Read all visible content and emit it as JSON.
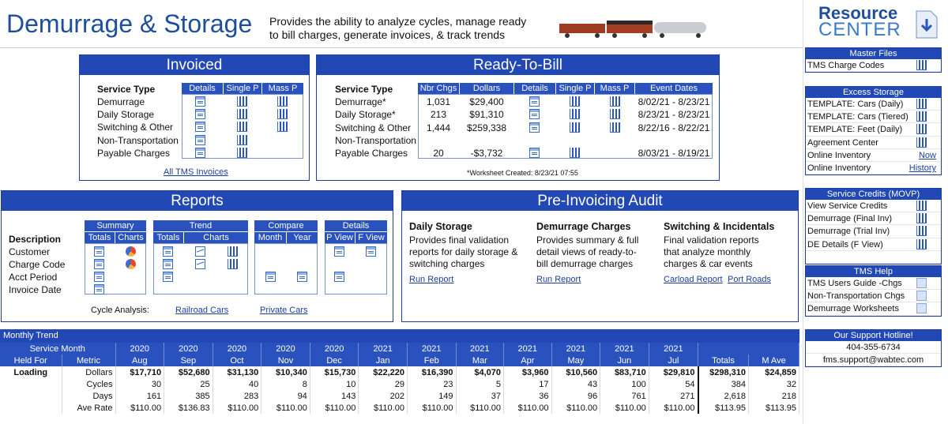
{
  "header": {
    "title": "Demurrage & Storage",
    "desc_line1": "Provides the ability to analyze cycles, manage ready",
    "desc_line2": "to bill charges, generate invoices, & track trends"
  },
  "invoiced": {
    "title": "Invoiced",
    "service_type_label": "Service Type",
    "cols": [
      "Details",
      "Single P",
      "Mass P"
    ],
    "rows": [
      "Demurrage",
      "Daily Storage",
      "Switching & Other",
      "Non-Transportation",
      "Payable Charges"
    ],
    "link": "All TMS Invoices"
  },
  "rtb": {
    "title": "Ready-To-Bill",
    "service_type_label": "Service Type",
    "cols": [
      "Nbr Chgs",
      "Dollars",
      "Details",
      "Single P",
      "Mass P",
      "Event Dates"
    ],
    "rows": [
      {
        "type": "Demurrage*",
        "nbr": "1,031",
        "dollars": "$29,400",
        "dates": "8/02/21 - 8/23/21"
      },
      {
        "type": "Daily Storage*",
        "nbr": "213",
        "dollars": "$91,310",
        "dates": "8/23/21 - 8/23/21"
      },
      {
        "type": "Switching & Other",
        "nbr": "1,444",
        "dollars": "$259,338",
        "dates": "8/22/16 - 8/22/21"
      },
      {
        "type": "Non-Transportation",
        "nbr": "",
        "dollars": "",
        "dates": ""
      },
      {
        "type": "Payable Charges",
        "nbr": "20",
        "dollars": "-$3,732",
        "dates": "8/03/21 - 8/19/21"
      }
    ],
    "footnote": "*Worksheet Created: 8/23/21 07:55"
  },
  "reports": {
    "title": "Reports",
    "description_label": "Description",
    "rows": [
      "Customer",
      "Charge Code",
      "Acct Period",
      "Invoice Date"
    ],
    "groups": [
      {
        "name": "Summary",
        "cols": [
          "Totals",
          "Charts"
        ]
      },
      {
        "name": "Trend",
        "cols": [
          "Totals",
          "Charts"
        ]
      },
      {
        "name": "Compare",
        "cols": [
          "Month",
          "Year"
        ]
      },
      {
        "name": "Details",
        "cols": [
          "P View",
          "F View"
        ]
      }
    ],
    "cycle_label": "Cycle Analysis:",
    "cycle_links": [
      "Railroad Cars",
      "Private Cars"
    ]
  },
  "audit": {
    "title": "Pre-Invoicing Audit",
    "cols": [
      {
        "h": "Daily Storage",
        "l1": "Provides final validation",
        "l2": "reports for daily storage &",
        "l3": "switching charges",
        "links": [
          "Run Report"
        ]
      },
      {
        "h": "Demurrage Charges",
        "l1": "Provides summary & full",
        "l2": "detail views of ready-to-",
        "l3": "bill demurrage charges",
        "links": [
          "Run Report"
        ]
      },
      {
        "h": "Switching & Incidentals",
        "l1": "Final validation reports",
        "l2": "that analyze monthly",
        "l3": "charges & car events",
        "links": [
          "Carload Report",
          "Port Roads"
        ]
      }
    ]
  },
  "resource": {
    "logo1": "Resource",
    "logo2": "CENTER",
    "sections": [
      {
        "title": "Master Files",
        "items": [
          {
            "label": "TMS Charge Codes",
            "icon": "bar-icon"
          }
        ]
      },
      {
        "title": "Excess Storage",
        "items": [
          {
            "label": "TEMPLATE: Cars (Daily)",
            "icon": "bar-icon"
          },
          {
            "label": "TEMPLATE: Cars (Tiered)",
            "icon": "bar-icon"
          },
          {
            "label": "TEMPLATE: Feet (Daily)",
            "icon": "bar-icon"
          },
          {
            "label": "Agreement Center",
            "icon": "bar-icon"
          },
          {
            "label": "Online Inventory",
            "link": "Now"
          },
          {
            "label": "Online Inventory",
            "link": "History"
          }
        ]
      },
      {
        "title": "Service Credits (MOVP)",
        "items": [
          {
            "label": "View Service Credits",
            "icon": "bar-icon"
          },
          {
            "label": "Demurrage (Final Inv)",
            "icon": "bar-icon"
          },
          {
            "label": "Demurrage (Trial Inv)",
            "icon": "bar-icon"
          },
          {
            "label": "DE Details (F View)",
            "icon": "bar-icon"
          },
          {
            "label": "",
            "icon": ""
          }
        ]
      },
      {
        "title": "TMS Help",
        "items": [
          {
            "label": "TMS Users Guide -Chgs",
            "icon": "doc-icon"
          },
          {
            "label": "Non-Transportation Chgs",
            "icon": "doc-icon"
          },
          {
            "label": "Demurrage Worksheets",
            "icon": "doc-icon"
          }
        ]
      },
      {
        "title": "Our Support Hotline!",
        "items": [
          {
            "label": "404-355-6734"
          },
          {
            "label": "fms.support@wabtec.com"
          }
        ]
      }
    ]
  },
  "trend": {
    "title": "Monthly Trend",
    "service_month_label": "Service Month",
    "held_for_label": "Held For",
    "metric_label": "Metric",
    "years": [
      "2020",
      "2020",
      "2020",
      "2020",
      "2020",
      "2021",
      "2021",
      "2021",
      "2021",
      "2021",
      "2021",
      "2021"
    ],
    "months": [
      "Aug",
      "Sep",
      "Oct",
      "Nov",
      "Dec",
      "Jan",
      "Feb",
      "Mar",
      "Apr",
      "May",
      "Jun",
      "Jul"
    ],
    "totals_label": "Totals",
    "mave_label": "M Ave",
    "rows": [
      {
        "held": "Loading",
        "metric": "Dollars",
        "vals": [
          "$17,710",
          "$52,680",
          "$31,130",
          "$10,340",
          "$15,730",
          "$22,220",
          "$16,390",
          "$4,070",
          "$3,960",
          "$10,560",
          "$83,710",
          "$29,810"
        ],
        "total": "$298,310",
        "mave": "$24,859"
      },
      {
        "held": "",
        "metric": "Cycles",
        "vals": [
          "30",
          "25",
          "40",
          "8",
          "10",
          "29",
          "23",
          "5",
          "17",
          "43",
          "100",
          "54"
        ],
        "total": "384",
        "mave": "32"
      },
      {
        "held": "",
        "metric": "Days",
        "vals": [
          "161",
          "385",
          "283",
          "94",
          "143",
          "202",
          "149",
          "37",
          "36",
          "96",
          "761",
          "271"
        ],
        "total": "2,618",
        "mave": "218"
      },
      {
        "held": "",
        "metric": "Ave Rate",
        "vals": [
          "$110.00",
          "$136.83",
          "$110.00",
          "$110.00",
          "$110.00",
          "$110.00",
          "$110.00",
          "$110.00",
          "$110.00",
          "$110.00",
          "$110.00",
          "$110.00"
        ],
        "total": "$113.95",
        "mave": "$113.95"
      }
    ]
  }
}
